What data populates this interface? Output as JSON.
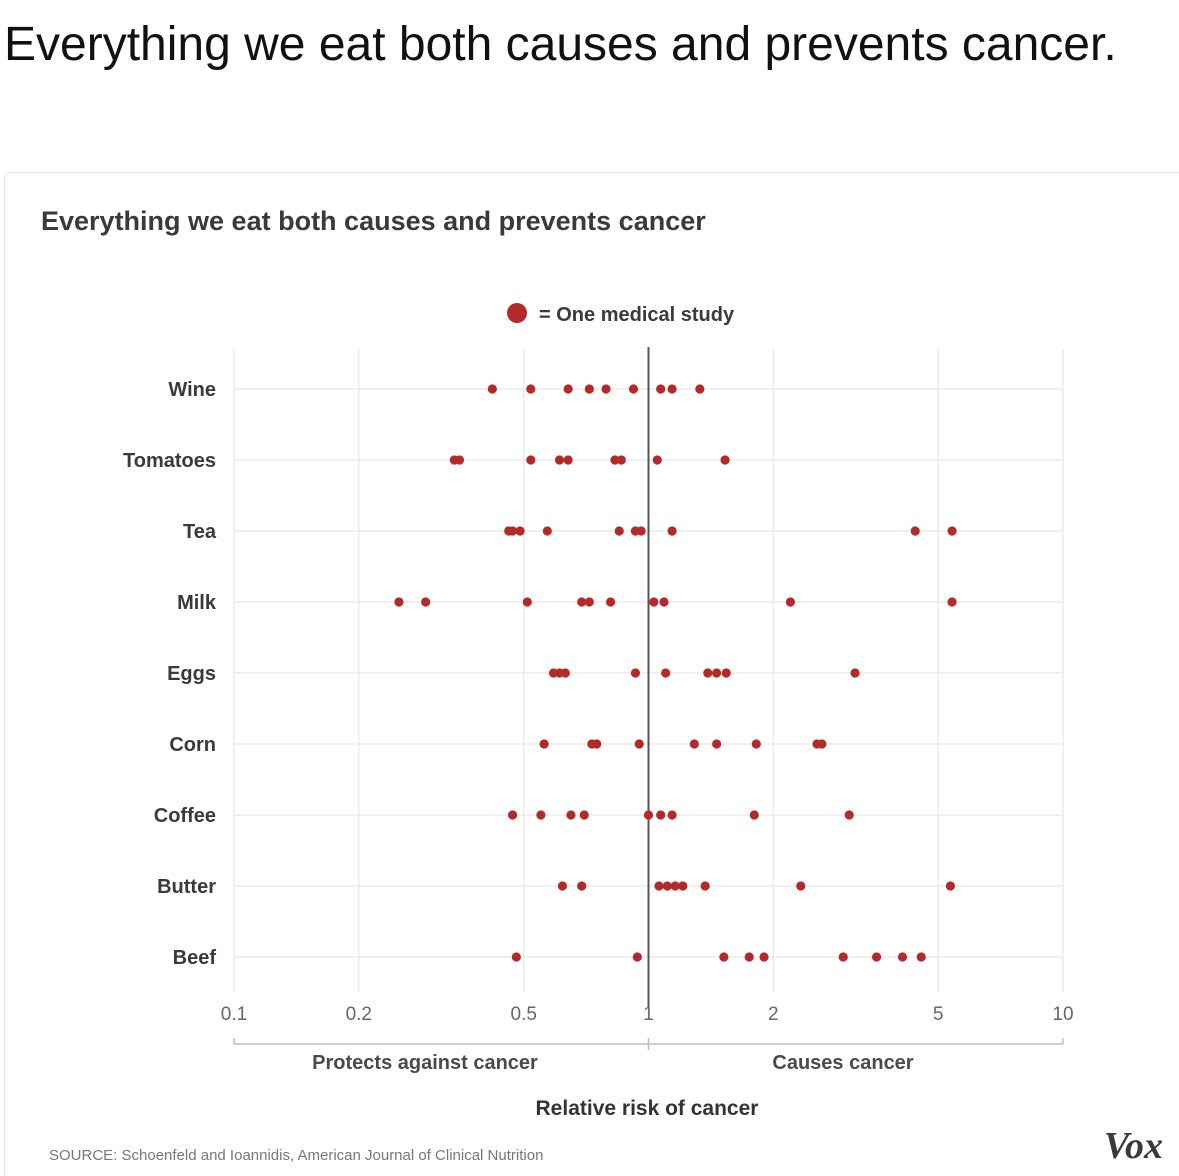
{
  "post": {
    "text": "Everything we eat both causes and prevents cancer."
  },
  "chart_data": {
    "type": "scatter",
    "title": "Everything we eat both causes and prevents cancer",
    "legend": {
      "label": "= One medical study",
      "color": "#b42a2a",
      "placement": "top-center"
    },
    "xscale": "log",
    "xlim": [
      0.1,
      10
    ],
    "xticks": [
      {
        "value": 0.1,
        "label": "0.1"
      },
      {
        "value": 0.2,
        "label": "0.2"
      },
      {
        "value": 0.5,
        "label": "0.5"
      },
      {
        "value": 1,
        "label": "1"
      },
      {
        "value": 2,
        "label": "2"
      },
      {
        "value": 5,
        "label": "5"
      },
      {
        "value": 10,
        "label": "10"
      }
    ],
    "reference_line": 1,
    "xlabel": "Relative risk of cancer",
    "left_label": "Protects against cancer",
    "right_label": "Causes cancer",
    "grid": true,
    "point_color": "#b42a2a",
    "series": [
      {
        "name": "Wine",
        "values": [
          0.42,
          0.52,
          0.64,
          0.72,
          0.79,
          0.92,
          1.07,
          1.14,
          1.33
        ]
      },
      {
        "name": "Tomatoes",
        "values": [
          0.34,
          0.35,
          0.52,
          0.61,
          0.64,
          0.83,
          0.86,
          1.05,
          1.53
        ]
      },
      {
        "name": "Tea",
        "values": [
          0.46,
          0.47,
          0.49,
          0.57,
          0.85,
          0.93,
          0.96,
          1.14,
          4.4,
          5.4
        ]
      },
      {
        "name": "Milk",
        "values": [
          0.25,
          0.29,
          0.51,
          0.69,
          0.72,
          0.81,
          1.03,
          1.09,
          2.2,
          5.4
        ]
      },
      {
        "name": "Eggs",
        "values": [
          0.59,
          0.61,
          0.63,
          0.93,
          1.1,
          1.39,
          1.46,
          1.54,
          3.15
        ]
      },
      {
        "name": "Corn",
        "values": [
          0.56,
          0.73,
          0.75,
          0.95,
          1.29,
          1.46,
          1.82,
          2.55,
          2.62
        ]
      },
      {
        "name": "Coffee",
        "values": [
          0.47,
          0.55,
          0.65,
          0.7,
          1.0,
          1.07,
          1.14,
          1.8,
          3.05
        ]
      },
      {
        "name": "Butter",
        "values": [
          0.62,
          0.69,
          1.06,
          1.11,
          1.16,
          1.21,
          1.37,
          2.33,
          5.35
        ]
      },
      {
        "name": "Beef",
        "values": [
          0.48,
          0.94,
          1.52,
          1.75,
          1.9,
          2.95,
          3.55,
          4.1,
          4.55
        ]
      }
    ],
    "source": "SOURCE: Schoenfeld and Ioannidis, American Journal of Clinical Nutrition"
  },
  "brand": {
    "logo": "Vox"
  },
  "colors": {
    "grid": "#e6e6e6",
    "reference": "#555555",
    "axis": "#bdbdbd"
  }
}
